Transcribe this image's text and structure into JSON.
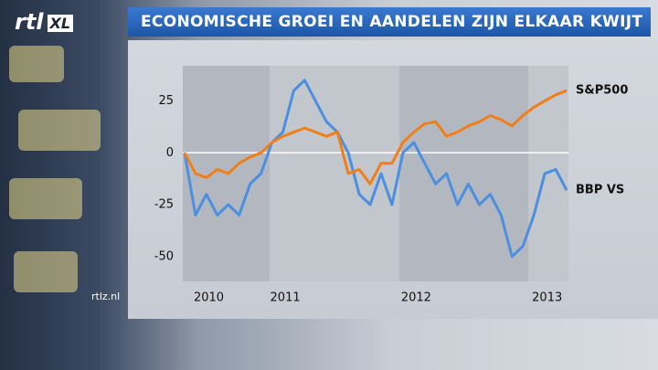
{
  "logo": {
    "brand": "rtl",
    "badge": "XL"
  },
  "watermark": "rtlz.nl",
  "chart_data": {
    "type": "line",
    "title": "ECONOMISCHE GROEI EN AANDELEN ZIJN ELKAAR KWIJT",
    "categories": [
      null,
      "2010",
      null,
      null,
      null,
      null,
      null,
      null,
      "2011",
      null,
      null,
      null,
      null,
      null,
      null,
      null,
      null,
      null,
      null,
      null,
      "2012",
      null,
      null,
      null,
      null,
      null,
      null,
      null,
      null,
      null,
      null,
      null,
      "2013",
      null,
      null,
      null
    ],
    "series": [
      {
        "name": "S&P500",
        "color": "#f07f1a",
        "values": [
          0,
          -10,
          -12,
          -8,
          -10,
          -5,
          -2,
          0,
          5,
          8,
          10,
          12,
          10,
          8,
          10,
          -10,
          -8,
          -15,
          -5,
          -5,
          5,
          10,
          14,
          15,
          8,
          10,
          13,
          15,
          18,
          16,
          13,
          18,
          22,
          25,
          28,
          30
        ]
      },
      {
        "name": "BBP VS",
        "color": "#4a8fe0",
        "values": [
          0,
          -30,
          -20,
          -30,
          -25,
          -30,
          -15,
          -10,
          5,
          10,
          30,
          35,
          25,
          15,
          10,
          0,
          -20,
          -25,
          -10,
          -25,
          0,
          5,
          -5,
          -15,
          -10,
          -25,
          -15,
          -25,
          -20,
          -30,
          -50,
          -45,
          -30,
          -10,
          -8,
          -18
        ]
      }
    ],
    "ylim": [
      -62,
      42
    ],
    "yticks": [
      25,
      0,
      -25,
      -50
    ],
    "zero_line": true
  }
}
